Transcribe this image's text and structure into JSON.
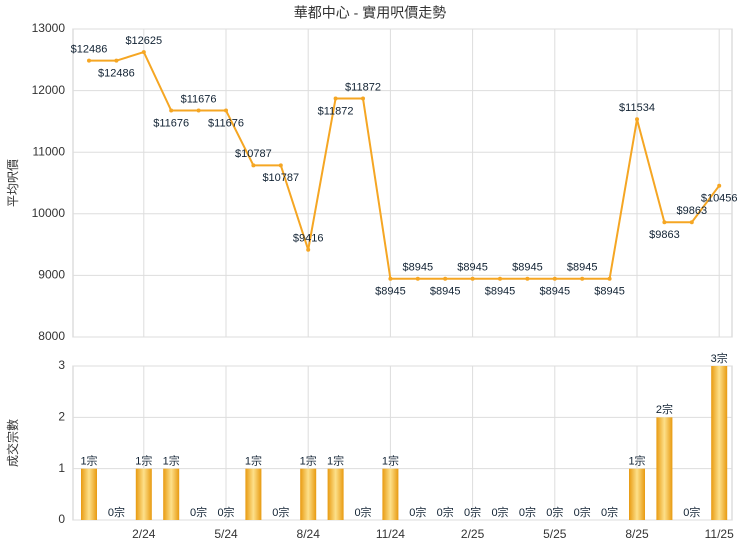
{
  "chart_data": [
    {
      "type": "line",
      "title": "華都中心 - 實用呎價走勢",
      "y_label": "平均呎價",
      "color": "#f5a623",
      "values": [
        12486,
        12486,
        12625,
        11676,
        11676,
        11676,
        10787,
        10787,
        9416,
        11872,
        11872,
        8945,
        8945,
        8945,
        8945,
        8945,
        8945,
        8945,
        8945,
        8945,
        11534,
        9863,
        9863,
        10456
      ],
      "value_labels": [
        "$12486",
        "$12486",
        "$12625",
        "$11676",
        "$11676",
        "$11676",
        "$10787",
        "$10787",
        "$9416",
        "$11872",
        "$11872",
        "$8945",
        "$8945",
        "$8945",
        "$8945",
        "$8945",
        "$8945",
        "$8945",
        "$8945",
        "$8945",
        "$11534",
        "$9863",
        "$9863",
        "$10456"
      ],
      "ylim": [
        8000,
        13000
      ],
      "yticks": [
        8000,
        9000,
        10000,
        11000,
        12000,
        13000
      ],
      "grid": true
    },
    {
      "type": "bar",
      "y_label": "成交宗數",
      "color": "#f5a623",
      "categories": [
        null,
        null,
        "2/24",
        null,
        null,
        "5/24",
        null,
        null,
        "8/24",
        null,
        null,
        "11/24",
        null,
        null,
        "2/25",
        null,
        null,
        "5/25",
        null,
        null,
        "8/25",
        null,
        null,
        "11/25"
      ],
      "values": [
        1,
        0,
        1,
        1,
        0,
        0,
        1,
        0,
        1,
        1,
        0,
        1,
        0,
        0,
        0,
        0,
        0,
        0,
        0,
        0,
        1,
        2,
        0,
        3
      ],
      "value_labels": [
        "1宗",
        "0宗",
        "1宗",
        "1宗",
        "0宗",
        "0宗",
        "1宗",
        "0宗",
        "1宗",
        "1宗",
        "0宗",
        "1宗",
        "0宗",
        "0宗",
        "0宗",
        "0宗",
        "0宗",
        "0宗",
        "0宗",
        "0宗",
        "1宗",
        "2宗",
        "0宗",
        "3宗"
      ],
      "ylim": [
        0,
        3
      ],
      "yticks": [
        0,
        1,
        2,
        3
      ],
      "grid": true
    }
  ]
}
